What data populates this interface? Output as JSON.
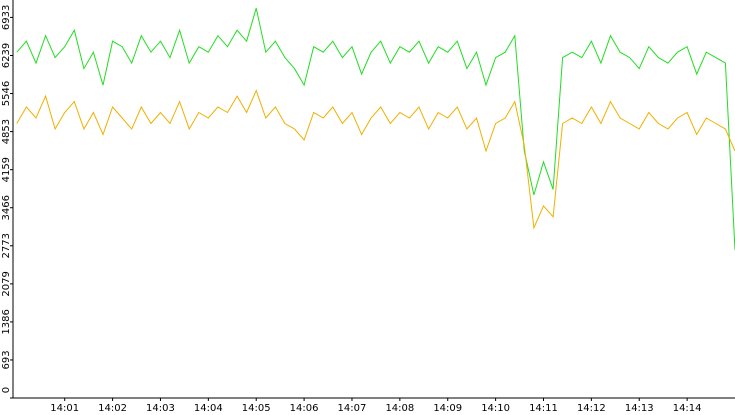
{
  "chart_data": {
    "type": "line",
    "x": [
      0,
      0.2,
      0.4,
      0.6,
      0.8,
      1.0,
      1.2,
      1.4,
      1.6,
      1.8,
      2.0,
      2.2,
      2.4,
      2.6,
      2.8,
      3.0,
      3.2,
      3.4,
      3.6,
      3.8,
      4.0,
      4.2,
      4.4,
      4.6,
      4.8,
      5.0,
      5.2,
      5.4,
      5.6,
      5.8,
      6.0,
      6.2,
      6.4,
      6.6,
      6.8,
      7.0,
      7.2,
      7.4,
      7.6,
      7.8,
      8.0,
      8.2,
      8.4,
      8.6,
      8.8,
      9.0,
      9.2,
      9.4,
      9.6,
      9.8,
      10.0,
      10.2,
      10.4,
      10.6,
      10.8,
      11.0,
      11.2,
      11.4,
      11.6,
      11.8,
      12.0,
      12.2,
      12.4,
      12.6,
      12.8,
      13.0,
      13.2,
      13.4,
      13.6,
      13.8,
      14.0,
      14.2,
      14.4,
      14.6,
      14.8,
      15.0
    ],
    "series": [
      {
        "color": "#22dd22",
        "values": [
          6300,
          6500,
          6100,
          6600,
          6200,
          6400,
          6700,
          6000,
          6300,
          5700,
          6500,
          6400,
          6100,
          6600,
          6300,
          6500,
          6200,
          6700,
          6100,
          6400,
          6300,
          6600,
          6400,
          6700,
          6500,
          7100,
          6300,
          6500,
          6200,
          6000,
          5700,
          6400,
          6300,
          6500,
          6200,
          6400,
          5900,
          6300,
          6500,
          6100,
          6400,
          6300,
          6500,
          6100,
          6400,
          6300,
          6500,
          6000,
          6300,
          5700,
          6200,
          6300,
          6600,
          4500,
          3700,
          4300,
          3800,
          6200,
          6300,
          6200,
          6500,
          6100,
          6600,
          6300,
          6200,
          6000,
          6400,
          6200,
          6100,
          6300,
          6400,
          5900,
          6300,
          6200,
          6100,
          2700
        ]
      },
      {
        "color": "#f0b000",
        "values": [
          5000,
          5300,
          5100,
          5500,
          4900,
          5200,
          5400,
          4900,
          5200,
          4800,
          5300,
          5100,
          4900,
          5300,
          5000,
          5200,
          5000,
          5400,
          4900,
          5200,
          5100,
          5300,
          5200,
          5500,
          5200,
          5600,
          5100,
          5300,
          5000,
          4900,
          4700,
          5200,
          5100,
          5300,
          5000,
          5200,
          4800,
          5100,
          5300,
          5000,
          5200,
          5100,
          5300,
          4900,
          5200,
          5100,
          5300,
          4900,
          5100,
          4500,
          5000,
          5100,
          5400,
          4600,
          3100,
          3500,
          3300,
          5000,
          5100,
          5000,
          5300,
          5000,
          5400,
          5100,
          5000,
          4900,
          5200,
          5000,
          4900,
          5100,
          5200,
          4800,
          5100,
          5000,
          4900,
          4500
        ]
      }
    ],
    "xlim": [
      -0.08,
      15.0
    ],
    "xticks": [
      {
        "value": 1,
        "label": "14:01"
      },
      {
        "value": 2,
        "label": "14:02"
      },
      {
        "value": 3,
        "label": "14:03"
      },
      {
        "value": 4,
        "label": "14:04"
      },
      {
        "value": 5,
        "label": "14:05"
      },
      {
        "value": 6,
        "label": "14:06"
      },
      {
        "value": 7,
        "label": "14:07"
      },
      {
        "value": 8,
        "label": "14:08"
      },
      {
        "value": 9,
        "label": "14:09"
      },
      {
        "value": 10,
        "label": "14:10"
      },
      {
        "value": 11,
        "label": "14:11"
      },
      {
        "value": 12,
        "label": "14:12"
      },
      {
        "value": 13,
        "label": "14:13"
      },
      {
        "value": 14,
        "label": "14:14"
      }
    ],
    "ylim": [
      0,
      7250
    ],
    "yticks": [
      0,
      693,
      1386,
      2079,
      2773,
      3466,
      4159,
      4853,
      5546,
      6239,
      6933
    ]
  }
}
